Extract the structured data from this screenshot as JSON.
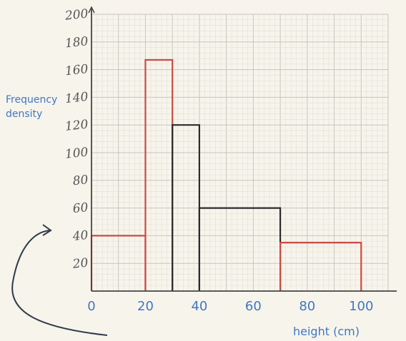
{
  "chart_data": {
    "type": "histogram",
    "xlabel": "height (cm)",
    "ylabel": "Frequency density",
    "x_ticks": [
      "0",
      "20",
      "40",
      "60",
      "80",
      "100"
    ],
    "y_ticks": [
      "20",
      "40",
      "60",
      "80",
      "100",
      "120",
      "140",
      "160",
      "180",
      "200"
    ],
    "xlim": [
      0,
      110
    ],
    "ylim": [
      0,
      200
    ],
    "bars": [
      {
        "x0": 0,
        "x1": 20,
        "value": 40,
        "color": "#cc4b42"
      },
      {
        "x0": 20,
        "x1": 30,
        "value": 167,
        "color": "#cc4b42"
      },
      {
        "x0": 30,
        "x1": 40,
        "value": 120,
        "color": "#2b2b2b"
      },
      {
        "x0": 40,
        "x1": 70,
        "value": 60,
        "color": "#2b2b2b"
      },
      {
        "x0": 70,
        "x1": 100,
        "value": 35,
        "color": "#cc4b42"
      }
    ],
    "annotation": "curved arrow pointing to 40 on the y-axis",
    "grid": true,
    "colors": {
      "grid_minor": "#e2dfd8",
      "grid_major": "#c8c5be",
      "axis": "#444444",
      "tick_x": "#3f78c2",
      "tick_y": "#555555",
      "arrow": "#2f3b4a"
    }
  }
}
